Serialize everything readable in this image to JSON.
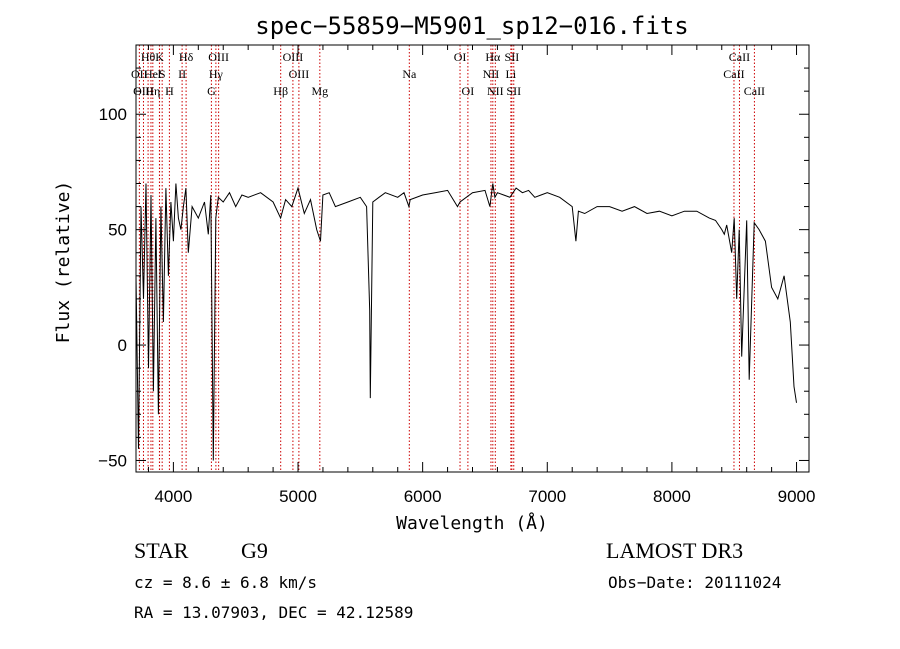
{
  "chart_data": {
    "type": "line",
    "title": "spec−55859−M5901_sp12−016.fits",
    "xlabel": "Wavelength (Å)",
    "ylabel": "Flux (relative)",
    "xlim": [
      3700,
      9100
    ],
    "ylim": [
      -55,
      130
    ],
    "xticks": [
      4000,
      5000,
      6000,
      7000,
      8000,
      9000
    ],
    "yticks": [
      -50,
      0,
      50,
      100
    ],
    "xtick_labels": [
      "4000",
      "5000",
      "6000",
      "7000",
      "8000",
      "9000"
    ],
    "ytick_labels": [
      "−50",
      "0",
      "50",
      "100"
    ],
    "series": [
      {
        "name": "flux",
        "x": [
          3700,
          3720,
          3740,
          3760,
          3780,
          3800,
          3820,
          3840,
          3860,
          3880,
          3900,
          3920,
          3940,
          3960,
          3980,
          4000,
          4020,
          4040,
          4060,
          4080,
          4100,
          4120,
          4150,
          4200,
          4250,
          4280,
          4300,
          4320,
          4340,
          4360,
          4400,
          4450,
          4500,
          4550,
          4600,
          4700,
          4800,
          4860,
          4900,
          4950,
          5000,
          5050,
          5100,
          5150,
          5180,
          5200,
          5250,
          5300,
          5400,
          5500,
          5550,
          5575,
          5580,
          5600,
          5650,
          5700,
          5800,
          5850,
          5890,
          5900,
          6000,
          6100,
          6200,
          6280,
          6300,
          6400,
          6500,
          6540,
          6563,
          6580,
          6600,
          6650,
          6700,
          6750,
          6800,
          6850,
          6900,
          6950,
          7000,
          7100,
          7200,
          7230,
          7250,
          7300,
          7400,
          7500,
          7600,
          7700,
          7800,
          7900,
          8000,
          8100,
          8200,
          8300,
          8350,
          8400,
          8420,
          8440,
          8480,
          8500,
          8520,
          8540,
          8560,
          8600,
          8620,
          8660,
          8700,
          8750,
          8800,
          8850,
          8900,
          8950,
          8980,
          9000
        ],
        "y": [
          30,
          -45,
          60,
          20,
          70,
          -10,
          65,
          -20,
          55,
          -30,
          60,
          10,
          68,
          30,
          62,
          45,
          70,
          55,
          50,
          60,
          68,
          40,
          60,
          55,
          62,
          48,
          65,
          -50,
          55,
          64,
          62,
          66,
          60,
          65,
          64,
          66,
          62,
          55,
          63,
          60,
          68,
          57,
          63,
          50,
          45,
          65,
          66,
          60,
          62,
          64,
          60,
          15,
          -23,
          62,
          64,
          66,
          64,
          66,
          60,
          63,
          65,
          66,
          67,
          60,
          62,
          66,
          67,
          60,
          70,
          64,
          66,
          65,
          64,
          68,
          66,
          67,
          64,
          65,
          66,
          64,
          60,
          45,
          58,
          57,
          60,
          60,
          58,
          60,
          57,
          58,
          56,
          58,
          58,
          55,
          54,
          50,
          48,
          52,
          40,
          55,
          20,
          50,
          -5,
          54,
          -15,
          53,
          50,
          45,
          25,
          20,
          30,
          10,
          -18,
          -25
        ]
      }
    ],
    "lines": [
      {
        "label": "Hθ",
        "x": 3797,
        "row": 0
      },
      {
        "label": "OII",
        "x": 3727,
        "row": 1
      },
      {
        "label": "OIII",
        "x": 3760,
        "row": 2
      },
      {
        "label": "He",
        "x": 3820,
        "row": 1
      },
      {
        "label": "Hη",
        "x": 3835,
        "row": 2
      },
      {
        "label": "K",
        "x": 3889,
        "row": 0
      },
      {
        "label": "I",
        "x": 3888,
        "row": 1
      },
      {
        "label": "S",
        "x": 3910,
        "row": 1
      },
      {
        "label": "H",
        "x": 3968,
        "row": 2
      },
      {
        "label": "Hδ",
        "x": 4102,
        "row": 0
      },
      {
        "label": "II",
        "x": 4070,
        "row": 1
      },
      {
        "label": "OIII",
        "x": 4363,
        "row": 0
      },
      {
        "label": "Hγ",
        "x": 4341,
        "row": 1
      },
      {
        "label": "G",
        "x": 4305,
        "row": 2
      },
      {
        "label": "Hβ",
        "x": 4861,
        "row": 2
      },
      {
        "label": "OIII",
        "x": 4959,
        "row": 0
      },
      {
        "label": "OIII",
        "x": 5007,
        "row": 1
      },
      {
        "label": "Mg",
        "x": 5175,
        "row": 2
      },
      {
        "label": "Na",
        "x": 5893,
        "row": 1
      },
      {
        "label": "OI",
        "x": 6300,
        "row": 0
      },
      {
        "label": "OI",
        "x": 6363,
        "row": 2
      },
      {
        "label": "Hα",
        "x": 6563,
        "row": 0
      },
      {
        "label": "SII",
        "x": 6716,
        "row": 0
      },
      {
        "label": "NII",
        "x": 6548,
        "row": 1
      },
      {
        "label": "Li",
        "x": 6708,
        "row": 1
      },
      {
        "label": "NII",
        "x": 6583,
        "row": 2
      },
      {
        "label": "SII",
        "x": 6731,
        "row": 2
      },
      {
        "label": "CaII",
        "x": 8542,
        "row": 0
      },
      {
        "label": "CaII",
        "x": 8498,
        "row": 1
      },
      {
        "label": "CaII",
        "x": 8662,
        "row": 2
      }
    ],
    "line_color": "#cc0000"
  },
  "info": {
    "object_class": "STAR",
    "subclass": "G9",
    "redshift": "cz = 8.6 ± 6.8 km/s",
    "coords": "RA =  13.07903, DEC =  42.12589",
    "survey": "LAMOST DR3",
    "obs_date": "Obs−Date: 20111024"
  }
}
